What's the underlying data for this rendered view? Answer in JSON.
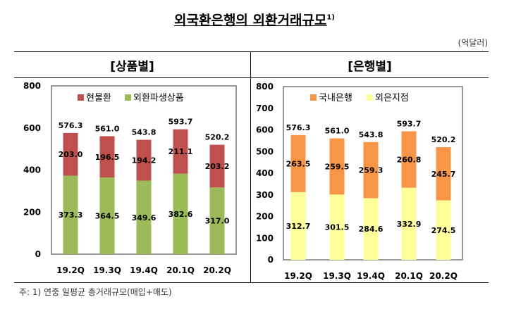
{
  "title": "외국환은행의 외환거래규모",
  "title_footnote": "1)",
  "unit": "(억달러)",
  "note": "주: 1) 연중 일평균 총거래규모(매입+매도)",
  "chart_data": [
    {
      "type": "bar",
      "stacked": true,
      "title": "[상품별]",
      "categories": [
        "19.2Q",
        "19.3Q",
        "19.4Q",
        "20.1Q",
        "20.2Q"
      ],
      "ylim": [
        0,
        800
      ],
      "yticks": [
        0,
        200,
        400,
        600,
        800
      ],
      "legend_position": "top",
      "grid": false,
      "series": [
        {
          "name": "외환파생상품",
          "color": "#9bbb59",
          "values": [
            373.3,
            364.5,
            349.6,
            382.6,
            317.0
          ]
        },
        {
          "name": "현물환",
          "color": "#c0504d",
          "values": [
            203.0,
            196.5,
            194.2,
            211.1,
            203.2
          ]
        }
      ],
      "totals": [
        576.3,
        561.0,
        543.8,
        593.7,
        520.2
      ]
    },
    {
      "type": "bar",
      "stacked": true,
      "title": "[은행별]",
      "categories": [
        "19.2Q",
        "19.3Q",
        "19.4Q",
        "20.1Q",
        "20.2Q"
      ],
      "ylim": [
        0,
        800
      ],
      "yticks": [
        0,
        100,
        200,
        300,
        400,
        500,
        600,
        700,
        800
      ],
      "legend_position": "top",
      "grid": false,
      "series": [
        {
          "name": "외은지점",
          "color": "#ffff99",
          "values": [
            312.7,
            301.5,
            284.6,
            332.9,
            274.5
          ]
        },
        {
          "name": "국내은행",
          "color": "#f79646",
          "values": [
            263.5,
            259.5,
            259.3,
            260.8,
            245.7
          ]
        }
      ],
      "totals": [
        576.3,
        561.0,
        543.8,
        593.7,
        520.2
      ]
    }
  ]
}
